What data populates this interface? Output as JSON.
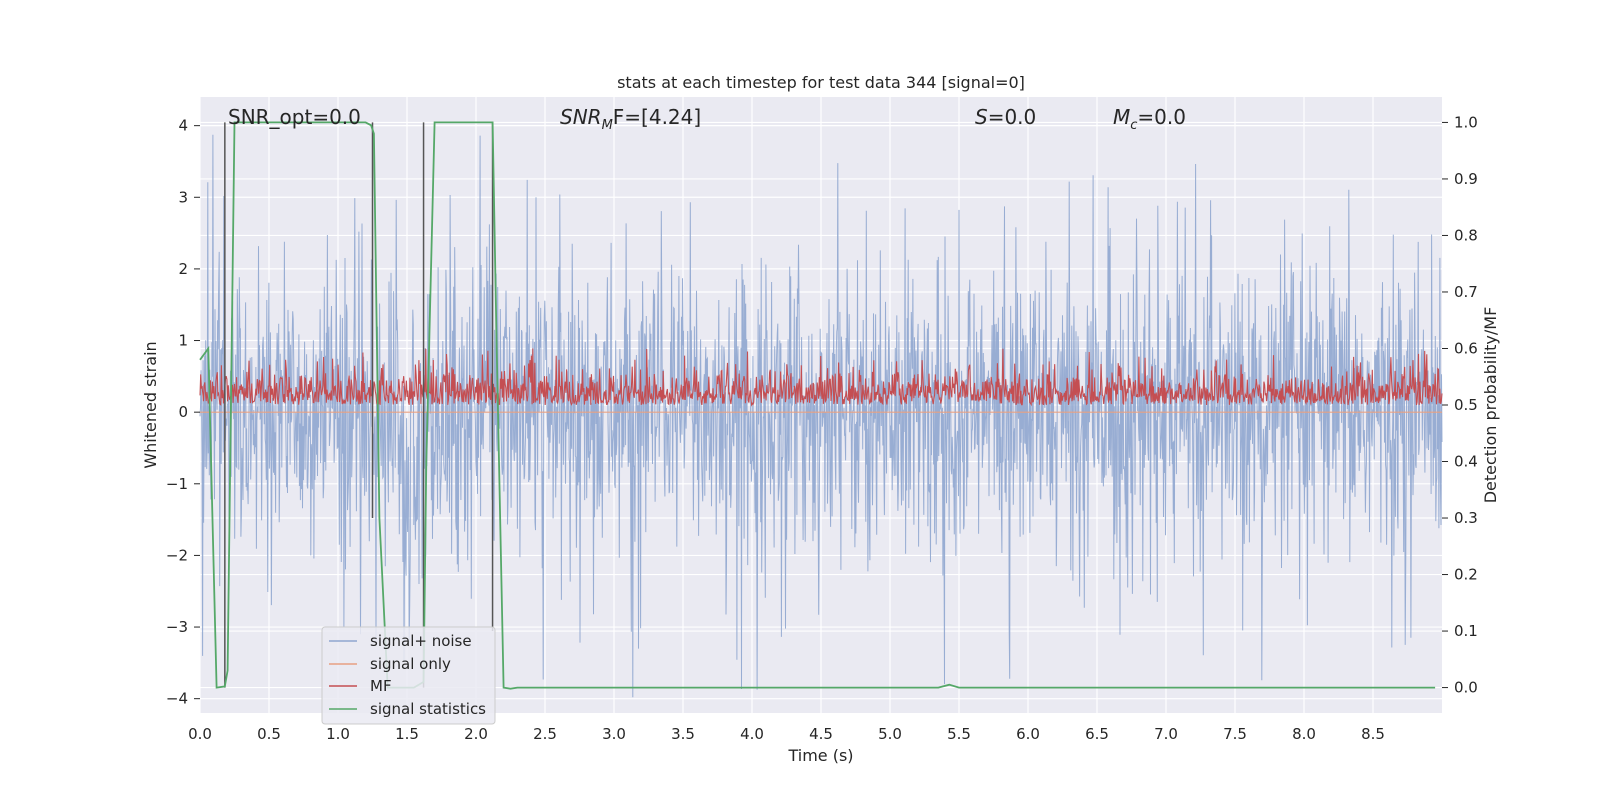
{
  "chart_data": {
    "type": "line",
    "title": "stats at each timestep for test data 344 [signal=0]",
    "xlabel": "Time (s)",
    "ylabel": "Whitened strain",
    "y2label": "Detection probability/MF",
    "xlim": [
      0.0,
      9.0
    ],
    "ylim": [
      -4.2,
      4.4
    ],
    "y2lim": [
      -0.045,
      1.045
    ],
    "xticks": [
      "0.0",
      "0.5",
      "1.0",
      "1.5",
      "2.0",
      "2.5",
      "3.0",
      "3.5",
      "4.0",
      "4.5",
      "5.0",
      "5.5",
      "6.0",
      "6.5",
      "7.0",
      "7.5",
      "8.0",
      "8.5"
    ],
    "yticks": [
      "4",
      "3",
      "2",
      "1",
      "0",
      "−1",
      "−2",
      "−3",
      "−4"
    ],
    "y2ticks": [
      "1.0",
      "0.9",
      "0.8",
      "0.7",
      "0.6",
      "0.5",
      "0.4",
      "0.3",
      "0.2",
      "0.1",
      "0.0"
    ],
    "grid": true,
    "legend_placement": "lower-left",
    "annotations": {
      "snr_opt": "SNR_opt=0.0",
      "snr_mf_italic": "SNR",
      "snr_mf_sub": "M",
      "snr_mf_rest": "F=[4.24]",
      "s_italic": "S",
      "s_rest": "=0.0",
      "mc_italic": "M",
      "mc_sub": "c",
      "mc_rest": "=0.0"
    },
    "series": [
      {
        "name": "signal+ noise",
        "color": "#8fa6cf",
        "axis": "left",
        "kind": "noise",
        "amplitude": 1.1,
        "spike_max": 4.0
      },
      {
        "name": "signal only",
        "color": "#e8a082",
        "axis": "left",
        "kind": "flat",
        "values_x": [
          0.0,
          9.0
        ],
        "values_y": [
          0.0,
          0.0
        ]
      },
      {
        "name": "MF",
        "color": "#c44e52",
        "axis": "right",
        "kind": "noise-band",
        "baseline": 0.5,
        "max": 0.6
      },
      {
        "name": "signal statistics",
        "color": "#55a868",
        "axis": "right",
        "kind": "line",
        "x": [
          0.0,
          0.06,
          0.12,
          0.18,
          0.2,
          0.25,
          0.3,
          0.5,
          1.0,
          1.2,
          1.24,
          1.26,
          1.3,
          1.36,
          1.45,
          1.55,
          1.62,
          1.64,
          1.7,
          1.8,
          2.0,
          2.12,
          2.15,
          2.2,
          2.25,
          2.3,
          3.0,
          5.0,
          5.35,
          5.43,
          5.5,
          6.0,
          8.0,
          8.95
        ],
        "y": [
          0.58,
          0.6,
          0.0,
          0.002,
          0.03,
          1.0,
          1.0,
          1.0,
          1.0,
          1.0,
          0.995,
          0.98,
          0.3,
          0.0,
          0.0,
          0.0,
          0.01,
          0.4,
          1.0,
          1.0,
          1.0,
          1.0,
          0.6,
          0.0,
          -0.002,
          0.0,
          0.0,
          0.0,
          0.0,
          0.005,
          0.0,
          0.0,
          0.0,
          0.0
        ]
      }
    ],
    "vlines": [
      {
        "x": 0.18,
        "y_top": 1.0,
        "y_bottom": 0.0,
        "axis": "right",
        "color": "#555555"
      },
      {
        "x": 1.25,
        "y_top": 1.0,
        "y_bottom": 0.3,
        "axis": "right",
        "color": "#555555"
      },
      {
        "x": 1.62,
        "y_top": 1.0,
        "y_bottom": 0.0,
        "axis": "right",
        "color": "#555555"
      },
      {
        "x": 2.12,
        "y_top": 1.0,
        "y_bottom": 0.1,
        "axis": "right",
        "color": "#555555"
      }
    ],
    "background": "#eaeaf2",
    "grid_color": "#ffffff"
  }
}
